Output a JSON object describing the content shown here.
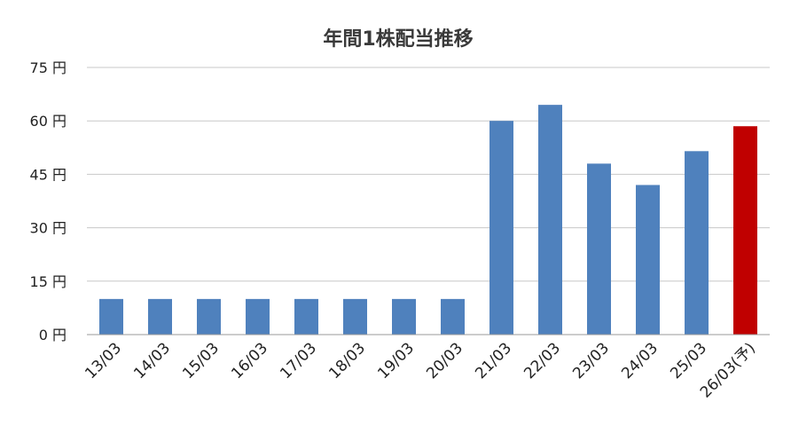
{
  "chart_data": {
    "type": "bar",
    "title": "年間1株配当推移",
    "xlabel": "",
    "ylabel": "",
    "ylim": [
      0,
      75
    ],
    "yticks": [
      {
        "value": 0,
        "label": "0 円"
      },
      {
        "value": 15,
        "label": "15 円"
      },
      {
        "value": 30,
        "label": "30 円"
      },
      {
        "value": 45,
        "label": "45 円"
      },
      {
        "value": 60,
        "label": "60 円"
      },
      {
        "value": 75,
        "label": "75 円"
      }
    ],
    "grid": true,
    "legend": "none",
    "categories": [
      "13/03",
      "14/03",
      "15/03",
      "16/03",
      "17/03",
      "18/03",
      "19/03",
      "20/03",
      "21/03",
      "22/03",
      "23/03",
      "24/03",
      "25/03",
      "26/03(予)"
    ],
    "values": [
      10,
      10,
      10,
      10,
      10,
      10,
      10,
      10,
      60,
      64.5,
      48,
      42,
      51.5,
      58.5
    ],
    "colors": {
      "actual": "#4f81bd",
      "forecast": "#c00000"
    },
    "forecast_category": "26/03(予)"
  }
}
